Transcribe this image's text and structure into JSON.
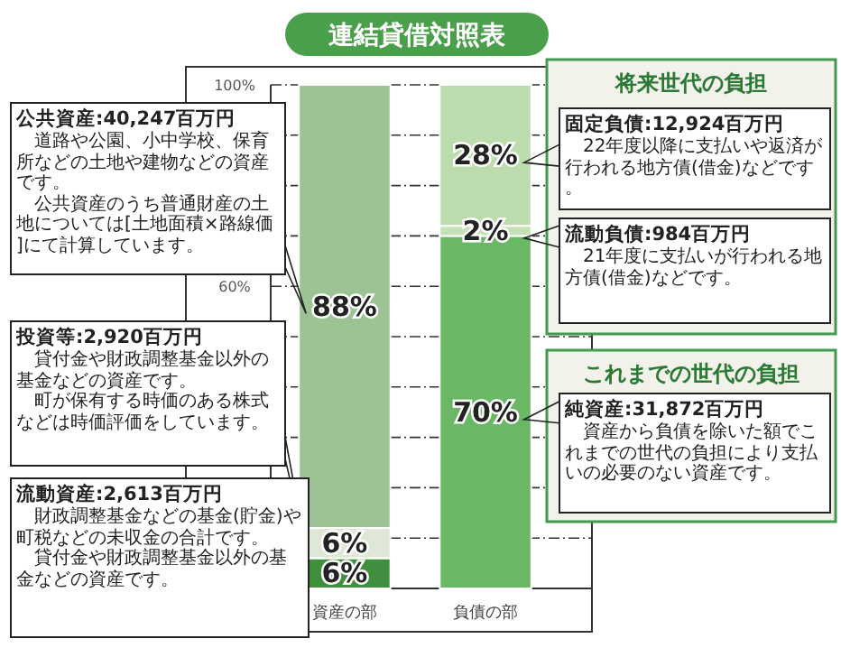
{
  "chart_data": {
    "type": "bar",
    "title": "連結貸借対照表",
    "stacked": true,
    "categories": [
      "資産の部",
      "負債の部"
    ],
    "series": [
      {
        "colors": [
          "#3f8f3f",
          "#6ab865"
        ],
        "values": [
          6,
          70
        ],
        "value_labels": [
          "6%",
          "70%"
        ]
      },
      {
        "colors": [
          "#dfe8d6",
          "#c4e0b6"
        ],
        "values": [
          6,
          2
        ],
        "value_labels": [
          "6%",
          "2%"
        ]
      },
      {
        "colors": [
          "#9dc394",
          "#bcdcae"
        ],
        "values": [
          88,
          28
        ],
        "value_labels": [
          "88%",
          "28%"
        ]
      }
    ],
    "ylim": [
      0,
      100
    ],
    "yticks": [
      {
        "value": 60,
        "label": "60%"
      },
      {
        "value": 70,
        "label": null
      },
      {
        "value": 80,
        "label": null
      },
      {
        "value": 90,
        "label": null
      },
      {
        "value": 100,
        "label": "100%"
      },
      {
        "value": 10,
        "label": null
      },
      {
        "value": 20,
        "label": null
      },
      {
        "value": 30,
        "label": null
      },
      {
        "value": 40,
        "label": null
      },
      {
        "value": 50,
        "label": null
      }
    ],
    "grid": "y",
    "annotations": [
      "公共資産:40,247百万円",
      "道路や公園、小中学校、保育所などの土地や建物などの資産です。",
      "公共資産のうち普通財産の土地については[土地面積×路線価]にて計算しています。",
      "投資等:2,920百万円",
      "貸付金や財政調整基金以外の基金などの資産です。",
      "町が保有する時価のある株式などは時価評価をしています。",
      "流動資産:2,613百万円",
      "財政調整基金などの基金(貯金)や町税などの未収金の合計です。",
      "貸付金や財政調整基金以外の基金などの資産です。",
      "将来世代の負担",
      "固定負債:12,924百万円",
      "22年度以降に支払いや返済が行われる地方債(借金)などです。",
      "流動負債:984百万円",
      "21年度に支払いが行われる地方債(借金)などです。",
      "これまでの世代の負担",
      "純資産:31,872百万円",
      "資産から負債を除いた額でこれまでの世代の負担により支払いの必要のない資産です。"
    ]
  }
}
